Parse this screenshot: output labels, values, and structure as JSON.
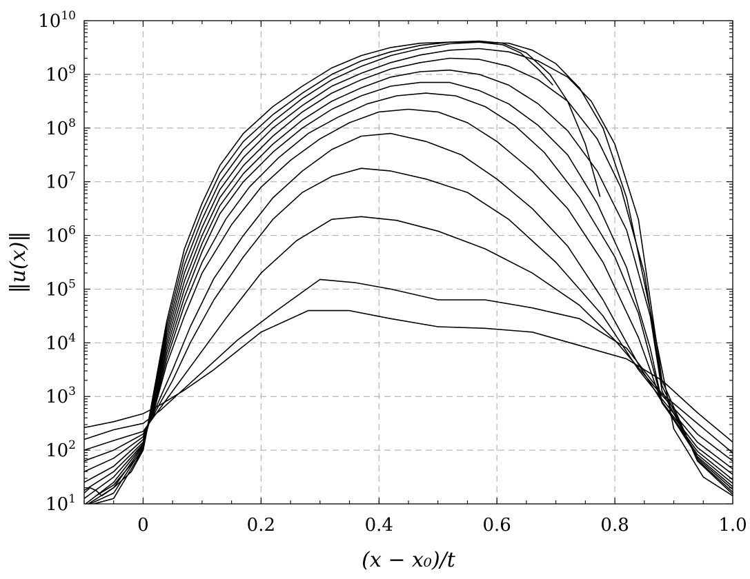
{
  "chart_data": {
    "type": "line",
    "title": "",
    "xlabel": "(x − x₀)/t",
    "ylabel": "‖u(x)‖",
    "xlim": [
      -0.1,
      1.0
    ],
    "ylim_log10": [
      1,
      10
    ],
    "yscale": "log",
    "grid": true,
    "x_ticks": [
      {
        "value": 0,
        "label": "0"
      },
      {
        "value": 0.2,
        "label": "0.2"
      },
      {
        "value": 0.4,
        "label": "0.4"
      },
      {
        "value": 0.6,
        "label": "0.6"
      },
      {
        "value": 0.8,
        "label": "0.8"
      },
      {
        "value": 1.0,
        "label": "1.0"
      }
    ],
    "y_ticks": [
      {
        "exp": 1,
        "base": "10",
        "sup": "1"
      },
      {
        "exp": 2,
        "base": "10",
        "sup": "2"
      },
      {
        "exp": 3,
        "base": "10",
        "sup": "3"
      },
      {
        "exp": 4,
        "base": "10",
        "sup": "4"
      },
      {
        "exp": 5,
        "base": "10",
        "sup": "5"
      },
      {
        "exp": 6,
        "base": "10",
        "sup": "6"
      },
      {
        "exp": 7,
        "base": "10",
        "sup": "7"
      },
      {
        "exp": 8,
        "base": "10",
        "sup": "8"
      },
      {
        "exp": 9,
        "base": "10",
        "sup": "9"
      },
      {
        "exp": 10,
        "base": "10",
        "sup": "10"
      }
    ],
    "series_count": 14,
    "series": [
      {
        "x": [
          -0.1,
          -0.05,
          0,
          0.03,
          0.07,
          0.12,
          0.2,
          0.28,
          0.35,
          0.42,
          0.5,
          0.58,
          0.66,
          0.74,
          0.82,
          0.88,
          0.94,
          1.0
        ],
        "log10_y": [
          2.42,
          2.53,
          2.68,
          2.85,
          3.12,
          3.5,
          4.2,
          4.6,
          4.6,
          4.45,
          4.3,
          4.27,
          4.2,
          3.95,
          3.7,
          3.3,
          2.7,
          2.15
        ]
      },
      {
        "x": [
          -0.1,
          -0.05,
          0,
          0.03,
          0.06,
          0.1,
          0.16,
          0.22,
          0.3,
          0.36,
          0.42,
          0.5,
          0.58,
          0.66,
          0.74,
          0.82,
          0.88,
          0.94,
          1.0
        ],
        "log10_y": [
          2.2,
          2.38,
          2.5,
          2.75,
          3.05,
          3.45,
          4.05,
          4.55,
          5.18,
          5.12,
          5.0,
          4.8,
          4.8,
          4.65,
          4.45,
          3.9,
          3.05,
          2.5,
          1.95
        ]
      },
      {
        "x": [
          -0.1,
          -0.05,
          0,
          0.02,
          0.05,
          0.09,
          0.14,
          0.2,
          0.26,
          0.32,
          0.37,
          0.43,
          0.5,
          0.58,
          0.66,
          0.74,
          0.8,
          0.88,
          0.94,
          1.0
        ],
        "log10_y": [
          2.0,
          2.18,
          2.35,
          2.65,
          3.1,
          3.7,
          4.45,
          5.3,
          5.9,
          6.3,
          6.35,
          6.28,
          6.08,
          5.75,
          5.3,
          4.7,
          4.05,
          3.02,
          2.3,
          1.8
        ]
      },
      {
        "x": [
          -0.1,
          -0.05,
          0,
          0.02,
          0.05,
          0.08,
          0.12,
          0.17,
          0.22,
          0.27,
          0.32,
          0.37,
          0.42,
          0.48,
          0.55,
          0.62,
          0.7,
          0.78,
          0.84,
          0.88,
          0.94,
          1.0
        ],
        "log10_y": [
          1.8,
          2.0,
          2.3,
          2.7,
          3.3,
          4.0,
          4.8,
          5.6,
          6.3,
          6.8,
          7.1,
          7.25,
          7.2,
          7.05,
          6.8,
          6.3,
          5.5,
          4.5,
          3.5,
          2.95,
          2.15,
          1.65
        ]
      },
      {
        "x": [
          -0.1,
          -0.05,
          0,
          0.02,
          0.05,
          0.08,
          0.12,
          0.17,
          0.22,
          0.27,
          0.32,
          0.37,
          0.42,
          0.48,
          0.54,
          0.6,
          0.66,
          0.72,
          0.78,
          0.84,
          0.88,
          0.94,
          1.0
        ],
        "log10_y": [
          1.6,
          1.85,
          2.25,
          2.75,
          3.5,
          4.3,
          5.2,
          6.0,
          6.7,
          7.2,
          7.6,
          7.85,
          7.9,
          7.75,
          7.5,
          7.05,
          6.5,
          5.8,
          4.8,
          3.6,
          2.9,
          2.05,
          1.55
        ]
      },
      {
        "x": [
          -0.1,
          -0.05,
          0,
          0.02,
          0.04,
          0.07,
          0.1,
          0.15,
          0.2,
          0.25,
          0.3,
          0.35,
          0.4,
          0.45,
          0.5,
          0.55,
          0.6,
          0.66,
          0.72,
          0.78,
          0.84,
          0.88,
          0.94,
          1.0
        ],
        "log10_y": [
          1.4,
          1.7,
          2.2,
          2.8,
          3.6,
          4.5,
          5.3,
          6.2,
          6.9,
          7.4,
          7.8,
          8.1,
          8.3,
          8.35,
          8.3,
          8.1,
          7.75,
          7.2,
          6.5,
          5.5,
          4.1,
          2.88,
          1.98,
          1.45
        ]
      },
      {
        "x": [
          -0.1,
          -0.05,
          0,
          0.02,
          0.04,
          0.07,
          0.1,
          0.14,
          0.18,
          0.23,
          0.28,
          0.33,
          0.38,
          0.43,
          0.48,
          0.53,
          0.58,
          0.63,
          0.68,
          0.74,
          0.8,
          0.84,
          0.88,
          0.94,
          1.0
        ],
        "log10_y": [
          1.25,
          1.6,
          2.15,
          2.85,
          3.7,
          4.7,
          5.5,
          6.3,
          6.9,
          7.45,
          7.9,
          8.2,
          8.45,
          8.6,
          8.65,
          8.6,
          8.4,
          8.05,
          7.55,
          6.7,
          5.6,
          4.55,
          2.9,
          1.92,
          1.38
        ]
      },
      {
        "x": [
          -0.1,
          -0.05,
          0,
          0.02,
          0.04,
          0.07,
          0.1,
          0.13,
          0.17,
          0.22,
          0.27,
          0.32,
          0.37,
          0.42,
          0.47,
          0.52,
          0.57,
          0.62,
          0.67,
          0.72,
          0.77,
          0.82,
          0.86,
          0.88,
          0.94,
          1.0
        ],
        "log10_y": [
          1.1,
          1.5,
          2.12,
          2.9,
          3.8,
          4.85,
          5.7,
          6.4,
          7.0,
          7.55,
          8.0,
          8.35,
          8.6,
          8.78,
          8.85,
          8.85,
          8.7,
          8.45,
          8.05,
          7.5,
          6.6,
          5.4,
          3.9,
          2.9,
          1.88,
          1.32
        ]
      },
      {
        "x": [
          -0.1,
          -0.05,
          0,
          0.02,
          0.04,
          0.07,
          0.1,
          0.13,
          0.17,
          0.22,
          0.27,
          0.32,
          0.37,
          0.42,
          0.47,
          0.52,
          0.57,
          0.62,
          0.67,
          0.72,
          0.77,
          0.82,
          0.86,
          0.88,
          0.94,
          1.0
        ],
        "log10_y": [
          0.98,
          1.4,
          2.1,
          2.95,
          3.9,
          5.0,
          5.85,
          6.55,
          7.15,
          7.7,
          8.15,
          8.5,
          8.75,
          8.95,
          9.05,
          9.08,
          9.0,
          8.8,
          8.45,
          7.95,
          7.2,
          6.1,
          4.5,
          3.1,
          1.85,
          1.27
        ]
      },
      {
        "x": [
          -0.1,
          -0.05,
          0,
          0.02,
          0.04,
          0.07,
          0.1,
          0.13,
          0.17,
          0.22,
          0.27,
          0.32,
          0.37,
          0.42,
          0.47,
          0.52,
          0.57,
          0.62,
          0.67,
          0.72,
          0.77,
          0.81,
          0.85,
          0.88,
          0.94,
          1.0
        ],
        "log10_y": [
          0.88,
          1.3,
          2.08,
          3.0,
          4.0,
          5.15,
          6.0,
          6.7,
          7.3,
          7.85,
          8.3,
          8.65,
          8.9,
          9.1,
          9.22,
          9.3,
          9.28,
          9.15,
          8.9,
          8.5,
          7.8,
          6.9,
          5.3,
          3.2,
          1.82,
          1.22
        ]
      },
      {
        "x": [
          -0.1,
          -0.05,
          0,
          0.02,
          0.04,
          0.07,
          0.1,
          0.13,
          0.17,
          0.22,
          0.27,
          0.32,
          0.37,
          0.42,
          0.47,
          0.52,
          0.57,
          0.62,
          0.67,
          0.72,
          0.76,
          0.8,
          0.84,
          0.88,
          0.94,
          1.0
        ],
        "log10_y": [
          0.78,
          1.2,
          2.05,
          3.05,
          4.1,
          5.3,
          6.15,
          6.85,
          7.45,
          8.0,
          8.42,
          8.78,
          9.02,
          9.22,
          9.36,
          9.45,
          9.48,
          9.42,
          9.25,
          8.95,
          8.5,
          7.7,
          6.3,
          3.3,
          1.8,
          1.18
        ]
      },
      {
        "x": [
          -0.1,
          -0.05,
          0,
          0.02,
          0.04,
          0.07,
          0.1,
          0.13,
          0.17,
          0.22,
          0.27,
          0.32,
          0.37,
          0.42,
          0.47,
          0.52,
          0.57,
          0.62,
          0.66,
          0.7,
          0.74,
          0.78,
          0.82,
          0.86,
          0.9,
          0.95,
          1.0
        ],
        "log10_y": [
          0.7,
          1.1,
          2.02,
          3.1,
          4.2,
          5.45,
          6.3,
          7.0,
          7.6,
          8.12,
          8.55,
          8.9,
          9.15,
          9.35,
          9.48,
          9.57,
          9.6,
          9.58,
          9.45,
          9.2,
          8.75,
          8.0,
          6.7,
          4.6,
          2.4,
          1.5,
          1.15
        ]
      },
      {
        "x": [
          -0.08,
          -0.05,
          0,
          0.02,
          0.04,
          0.07,
          0.1,
          0.13,
          0.17,
          0.22,
          0.27,
          0.32,
          0.37,
          0.42,
          0.47,
          0.52,
          0.57,
          0.61,
          0.65,
          0.69,
          0.72,
          0.75,
          0.775
        ],
        "log10_y": [
          1.15,
          1.35,
          2.0,
          3.15,
          4.3,
          5.6,
          6.45,
          7.15,
          7.75,
          8.25,
          8.65,
          9.0,
          9.25,
          9.42,
          9.54,
          9.6,
          9.62,
          9.58,
          9.4,
          9.0,
          8.5,
          7.7,
          6.72
        ]
      },
      {
        "x": [
          -0.1,
          -0.09,
          -0.08,
          -0.07,
          -0.05,
          -0.02,
          0,
          0.02,
          0.04,
          0.07,
          0.1,
          0.13,
          0.17,
          0.22,
          0.27,
          0.32,
          0.37,
          0.42,
          0.47,
          0.52,
          0.57,
          0.61,
          0.64,
          0.67,
          0.695
        ],
        "log10_y": [
          1.2,
          1.3,
          1.25,
          1.15,
          1.3,
          1.6,
          2.0,
          3.2,
          4.4,
          5.75,
          6.6,
          7.3,
          7.9,
          8.4,
          8.78,
          9.12,
          9.35,
          9.5,
          9.58,
          9.6,
          9.6,
          9.55,
          9.4,
          9.1,
          8.8
        ]
      }
    ]
  }
}
